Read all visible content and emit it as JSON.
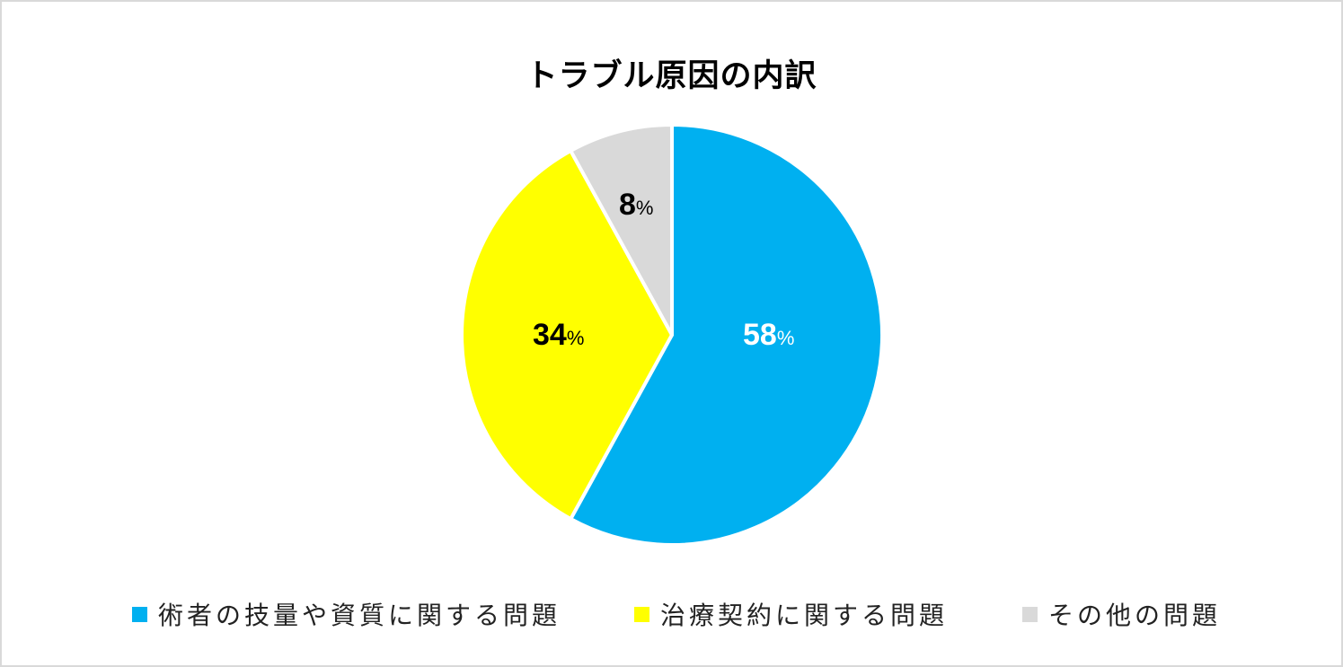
{
  "chart_data": {
    "type": "pie",
    "title": "トラブル原因の内訳",
    "categories": [
      "術者の技量や資質に関する問題",
      "治療契約に関する問題",
      "その他の問題"
    ],
    "values": [
      58,
      34,
      8
    ],
    "unit": "%",
    "colors": [
      "#00B0F0",
      "#FFFF00",
      "#D9D9D9"
    ],
    "start_angle": "12 o'clock, clockwise",
    "legend_position": "bottom",
    "data_labels": [
      "58%",
      "34%",
      "8%"
    ]
  },
  "title": "トラブル原因の内訳",
  "slices": [
    {
      "value": "58",
      "unit": "%",
      "label_color": "#FFFFFF"
    },
    {
      "value": "34",
      "unit": "%",
      "label_color": "#000000"
    },
    {
      "value": "8",
      "unit": "%",
      "label_color": "#000000"
    }
  ],
  "legend": [
    {
      "label": "術者の技量や資質に関する問題",
      "color": "#00B0F0"
    },
    {
      "label": "治療契約に関する問題",
      "color": "#FFFF00"
    },
    {
      "label": "その他の問題",
      "color": "#D9D9D9"
    }
  ]
}
